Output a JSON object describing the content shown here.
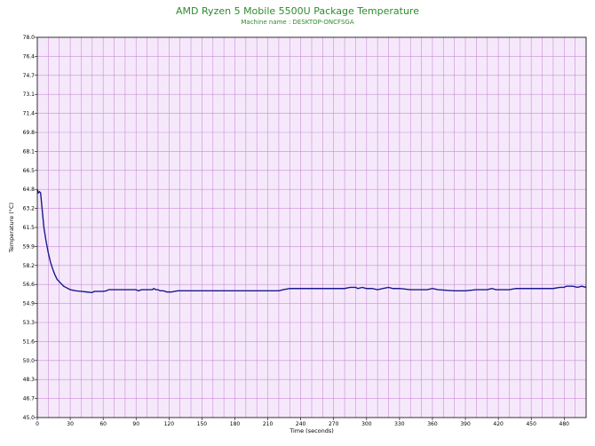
{
  "chart_data": {
    "type": "line",
    "title": "AMD Ryzen 5 Mobile 5500U Package Temperature",
    "subtitle": "Machine name : DESKTOP-ONCFSGA",
    "xlabel": "Time (seconds)",
    "ylabel": "Temperature (°C)",
    "xlim": [
      0,
      500
    ],
    "ylim": [
      45.0,
      78.0
    ],
    "xticks": [
      "0",
      "30",
      "60",
      "90",
      "120",
      "150",
      "180",
      "210",
      "240",
      "270",
      "300",
      "330",
      "360",
      "390",
      "420",
      "450",
      "480"
    ],
    "yticks": [
      "45.0",
      "46.7",
      "48.3",
      "50.0",
      "51.6",
      "53.3",
      "54.9",
      "56.6",
      "58.2",
      "59.9",
      "61.5",
      "63.2",
      "64.8",
      "66.5",
      "68.1",
      "69.8",
      "71.4",
      "73.1",
      "74.7",
      "76.4",
      "78.0"
    ],
    "grid": true,
    "colors": {
      "plot_bg": "#f6e8fb",
      "grid": "#c88fd6",
      "line": "#1a1a8c",
      "title": "#2e8b2e"
    },
    "series": [
      {
        "values": [
          [
            0,
            64.8
          ],
          [
            1,
            64.5
          ],
          [
            2,
            64.6
          ],
          [
            3,
            64.5
          ],
          [
            4,
            63.5
          ],
          [
            5,
            62.5
          ],
          [
            6,
            61.5
          ],
          [
            8,
            60.3
          ],
          [
            10,
            59.3
          ],
          [
            12,
            58.5
          ],
          [
            14,
            57.9
          ],
          [
            16,
            57.4
          ],
          [
            18,
            57.0
          ],
          [
            20,
            56.8
          ],
          [
            22,
            56.6
          ],
          [
            24,
            56.4
          ],
          [
            26,
            56.3
          ],
          [
            28,
            56.2
          ],
          [
            30,
            56.1
          ],
          [
            35,
            56.0
          ],
          [
            40,
            55.95
          ],
          [
            45,
            55.9
          ],
          [
            50,
            55.85
          ],
          [
            52,
            55.95
          ],
          [
            60,
            55.95
          ],
          [
            63,
            56.0
          ],
          [
            65,
            56.1
          ],
          [
            80,
            56.1
          ],
          [
            90,
            56.1
          ],
          [
            92,
            56.0
          ],
          [
            95,
            56.1
          ],
          [
            105,
            56.1
          ],
          [
            106,
            56.2
          ],
          [
            108,
            56.1
          ],
          [
            110,
            56.1
          ],
          [
            112,
            56.0
          ],
          [
            115,
            56.0
          ],
          [
            118,
            55.9
          ],
          [
            122,
            55.9
          ],
          [
            125,
            55.95
          ],
          [
            128,
            56.0
          ],
          [
            140,
            56.0
          ],
          [
            170,
            56.0
          ],
          [
            200,
            56.0
          ],
          [
            220,
            56.0
          ],
          [
            224,
            56.1
          ],
          [
            230,
            56.2
          ],
          [
            260,
            56.2
          ],
          [
            280,
            56.2
          ],
          [
            285,
            56.3
          ],
          [
            290,
            56.3
          ],
          [
            292,
            56.2
          ],
          [
            296,
            56.3
          ],
          [
            300,
            56.2
          ],
          [
            305,
            56.2
          ],
          [
            310,
            56.1
          ],
          [
            315,
            56.2
          ],
          [
            320,
            56.3
          ],
          [
            324,
            56.2
          ],
          [
            330,
            56.2
          ],
          [
            340,
            56.1
          ],
          [
            355,
            56.1
          ],
          [
            360,
            56.2
          ],
          [
            365,
            56.1
          ],
          [
            380,
            56.0
          ],
          [
            390,
            56.0
          ],
          [
            400,
            56.1
          ],
          [
            410,
            56.1
          ],
          [
            414,
            56.2
          ],
          [
            418,
            56.1
          ],
          [
            430,
            56.1
          ],
          [
            436,
            56.2
          ],
          [
            450,
            56.2
          ],
          [
            470,
            56.2
          ],
          [
            476,
            56.3
          ],
          [
            480,
            56.3
          ],
          [
            482,
            56.4
          ],
          [
            488,
            56.4
          ],
          [
            492,
            56.3
          ],
          [
            496,
            56.4
          ],
          [
            500,
            56.3
          ]
        ]
      }
    ]
  }
}
